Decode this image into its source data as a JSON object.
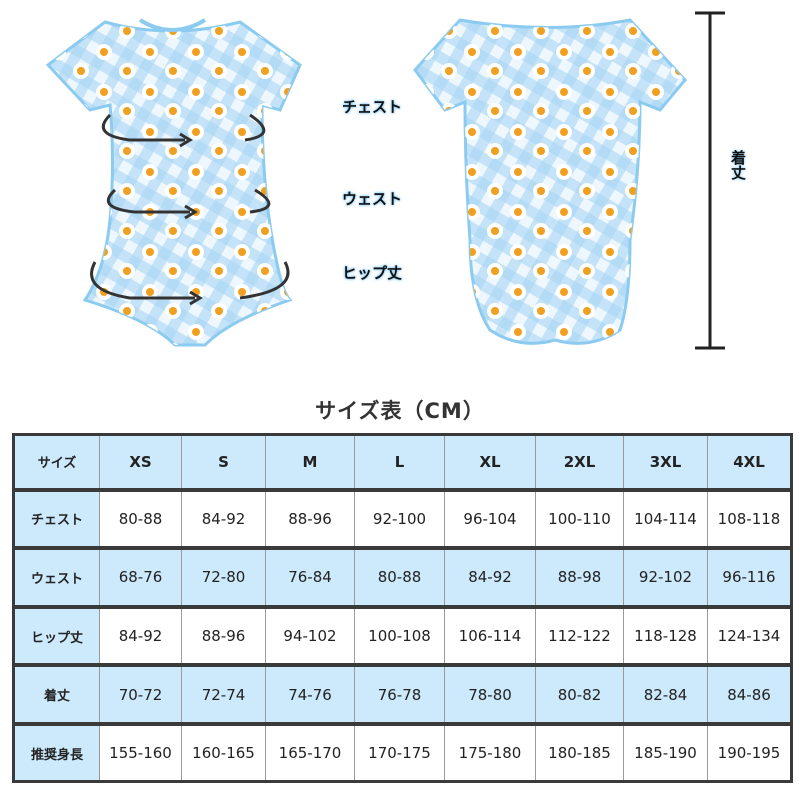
{
  "labels": {
    "chest": "チェスト",
    "waist": "ウェスト",
    "hip": "ヒップ丈",
    "length": "着丈"
  },
  "title": "サイズ表（CM）",
  "colors": {
    "header_bg": "#cde9fc",
    "garment_blue": "#a9d6f5",
    "border": "#3a3a3a"
  },
  "table": {
    "header": [
      "サイズ",
      "XS",
      "S",
      "M",
      "L",
      "XL",
      "2XL",
      "3XL",
      "4XL"
    ],
    "rows": [
      {
        "label": "チェスト",
        "values": [
          "80-88",
          "84-92",
          "88-96",
          "92-100",
          "96-104",
          "100-110",
          "104-114",
          "108-118"
        ]
      },
      {
        "label": "ウェスト",
        "values": [
          "68-76",
          "72-80",
          "76-84",
          "80-88",
          "84-92",
          "88-98",
          "92-102",
          "96-116"
        ]
      },
      {
        "label": "ヒップ丈",
        "values": [
          "84-92",
          "88-96",
          "94-102",
          "100-108",
          "106-114",
          "112-122",
          "118-128",
          "124-134"
        ]
      },
      {
        "label": "着丈",
        "values": [
          "70-72",
          "72-74",
          "74-76",
          "76-78",
          "78-80",
          "80-82",
          "82-84",
          "84-86"
        ]
      },
      {
        "label": "推奨身長",
        "values": [
          "155-160",
          "160-165",
          "165-170",
          "170-175",
          "175-180",
          "180-185",
          "185-190",
          "190-195"
        ]
      }
    ]
  }
}
